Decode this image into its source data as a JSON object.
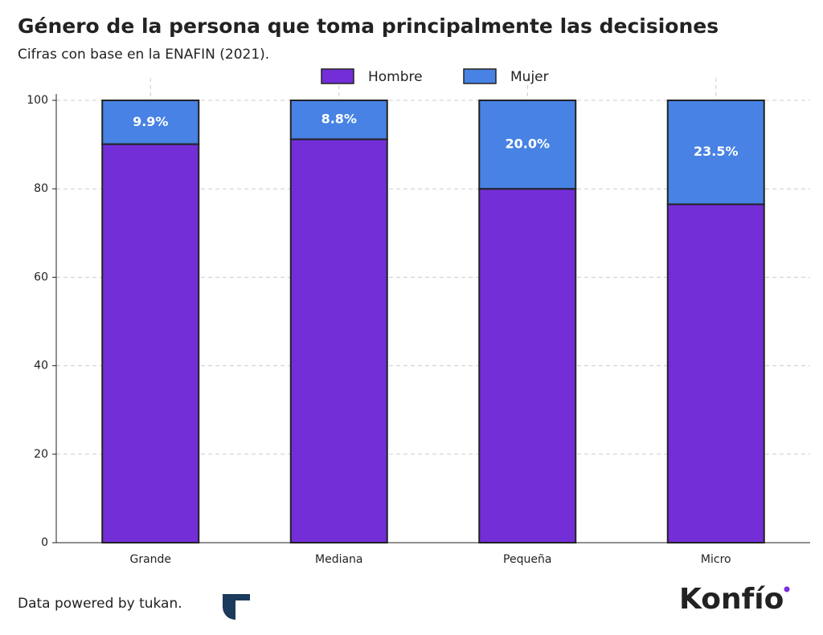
{
  "chart_data": {
    "type": "stacked_bar",
    "title": "Género de la persona que toma principalmente las decisiones",
    "subtitle": "Cifras con base en la ENAFIN (2021).",
    "categories": [
      "Grande",
      "Mediana",
      "Pequeña",
      "Micro"
    ],
    "series": [
      {
        "name": "Hombre",
        "color": "#732ed8",
        "values": [
          90.1,
          91.2,
          80.0,
          76.5
        ]
      },
      {
        "name": "Mujer",
        "color": "#4782e4",
        "values": [
          9.9,
          8.8,
          20.0,
          23.5
        ],
        "value_labels": [
          "9.9%",
          "8.8%",
          "20.0%",
          "23.5%"
        ]
      }
    ],
    "ylim": [
      0,
      100
    ],
    "yticks": [
      0,
      20,
      40,
      60,
      80,
      100
    ],
    "grid": true,
    "legend": "top"
  },
  "footer": {
    "credit": "Data powered by tukan.",
    "brand": "Konfío"
  }
}
